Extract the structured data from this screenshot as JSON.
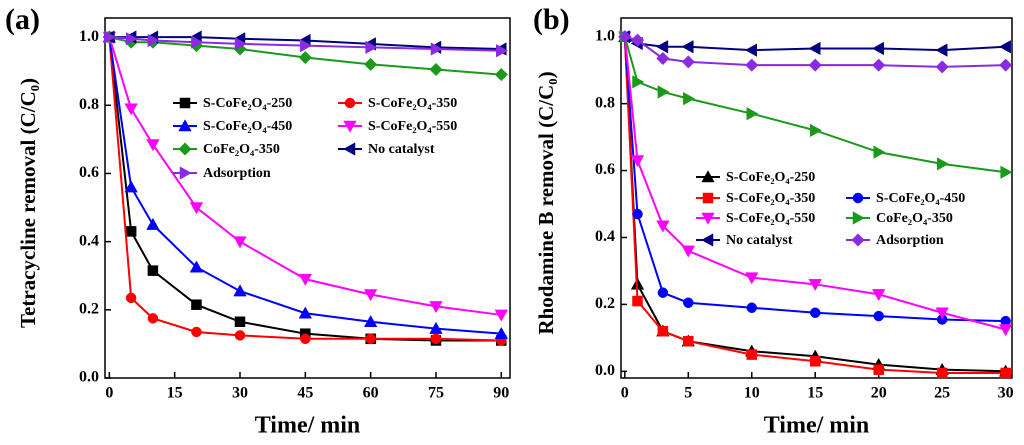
{
  "chart_data": [
    {
      "type": "line",
      "panel_label": "(a)",
      "x_label": "Time/ min",
      "y_label": "Tetracycline removal (C/C₀)",
      "x": [
        0,
        5,
        10,
        20,
        30,
        45,
        60,
        75,
        90
      ],
      "xlim": [
        -1,
        92
      ],
      "xticks": [
        0,
        15,
        30,
        45,
        60,
        75,
        90
      ],
      "ylim": [
        0,
        1.056
      ],
      "yticks": [
        {
          "value": 0,
          "label": "0.0"
        },
        0.2,
        0.4,
        0.6,
        0.8,
        {
          "value": 1,
          "label": "1.0"
        }
      ],
      "series": [
        {
          "name": "S-CoFe₂O₄-250",
          "color": "#000000",
          "marker": "square",
          "values": [
            1.0,
            0.43,
            0.315,
            0.215,
            0.165,
            0.13,
            0.115,
            0.11,
            0.11
          ]
        },
        {
          "name": "S-CoFe₂O₄-350",
          "color": "#ff0000",
          "marker": "circle",
          "values": [
            1.0,
            0.235,
            0.175,
            0.135,
            0.125,
            0.115,
            0.115,
            0.115,
            0.11
          ]
        },
        {
          "name": "S-CoFe₂O₄-450",
          "color": "#0000ff",
          "marker": "up",
          "values": [
            1.0,
            0.56,
            0.45,
            0.325,
            0.255,
            0.19,
            0.165,
            0.145,
            0.13
          ]
        },
        {
          "name": "S-CoFe₂O₄-550",
          "color": "#ff00ff",
          "marker": "down",
          "values": [
            1.0,
            0.79,
            0.685,
            0.5,
            0.4,
            0.29,
            0.245,
            0.21,
            0.185
          ]
        },
        {
          "name": "CoFe₂O₄-350",
          "color": "#1a9a1a",
          "marker": "diamond",
          "values": [
            1.0,
            0.985,
            0.985,
            0.975,
            0.965,
            0.94,
            0.92,
            0.905,
            0.89
          ]
        },
        {
          "name": "No catalyst",
          "color": "#000080",
          "marker": "left",
          "values": [
            1.0,
            1.0,
            1.0,
            1.0,
            0.995,
            0.99,
            0.98,
            0.97,
            0.965
          ]
        },
        {
          "name": "Adsorption",
          "color": "#8a2be2",
          "marker": "right",
          "values": [
            1.0,
            0.995,
            0.99,
            0.985,
            0.98,
            0.975,
            0.97,
            0.965,
            0.96
          ]
        }
      ]
    },
    {
      "type": "line",
      "panel_label": "(b)",
      "x_label": "Time/ min",
      "y_label": "Rhodamine B removal (C/C₀)",
      "x": [
        0,
        1,
        3,
        5,
        10,
        15,
        20,
        25,
        30
      ],
      "xlim": [
        -0.3,
        30.5
      ],
      "xticks": [
        0,
        5,
        10,
        15,
        20,
        25,
        30
      ],
      "ylim": [
        -0.02,
        1.056
      ],
      "yticks": [
        {
          "value": 0,
          "label": "0.0"
        },
        0.2,
        0.4,
        0.6,
        0.8,
        {
          "value": 1,
          "label": "1.0"
        }
      ],
      "series": [
        {
          "name": "S-CoFe₂O₄-250",
          "color": "#000000",
          "marker": "up",
          "values": [
            1.0,
            0.26,
            0.12,
            0.09,
            0.06,
            0.045,
            0.02,
            0.005,
            0.0
          ]
        },
        {
          "name": "S-CoFe₂O₄-350",
          "color": "#ff0000",
          "marker": "square",
          "values": [
            1.0,
            0.21,
            0.12,
            0.09,
            0.05,
            0.03,
            0.005,
            -0.005,
            -0.005
          ]
        },
        {
          "name": "S-CoFe₂O₄-450",
          "color": "#0000ff",
          "marker": "circle",
          "values": [
            1.0,
            0.47,
            0.235,
            0.205,
            0.19,
            0.175,
            0.165,
            0.155,
            0.15
          ]
        },
        {
          "name": "S-CoFe₂O₄-550",
          "color": "#ff00ff",
          "marker": "down",
          "values": [
            1.0,
            0.63,
            0.435,
            0.36,
            0.28,
            0.26,
            0.23,
            0.175,
            0.125
          ]
        },
        {
          "name": "CoFe₂O₄-350",
          "color": "#1a9a1a",
          "marker": "right",
          "values": [
            1.0,
            0.865,
            0.835,
            0.815,
            0.77,
            0.72,
            0.655,
            0.62,
            0.595
          ]
        },
        {
          "name": "No catalyst",
          "color": "#000080",
          "marker": "left",
          "values": [
            1.0,
            0.98,
            0.97,
            0.97,
            0.96,
            0.965,
            0.965,
            0.96,
            0.97
          ]
        },
        {
          "name": "Adsorption",
          "color": "#8a2be2",
          "marker": "diamond",
          "values": [
            1.0,
            0.99,
            0.935,
            0.925,
            0.915,
            0.915,
            0.915,
            0.91,
            0.915
          ]
        }
      ]
    }
  ]
}
